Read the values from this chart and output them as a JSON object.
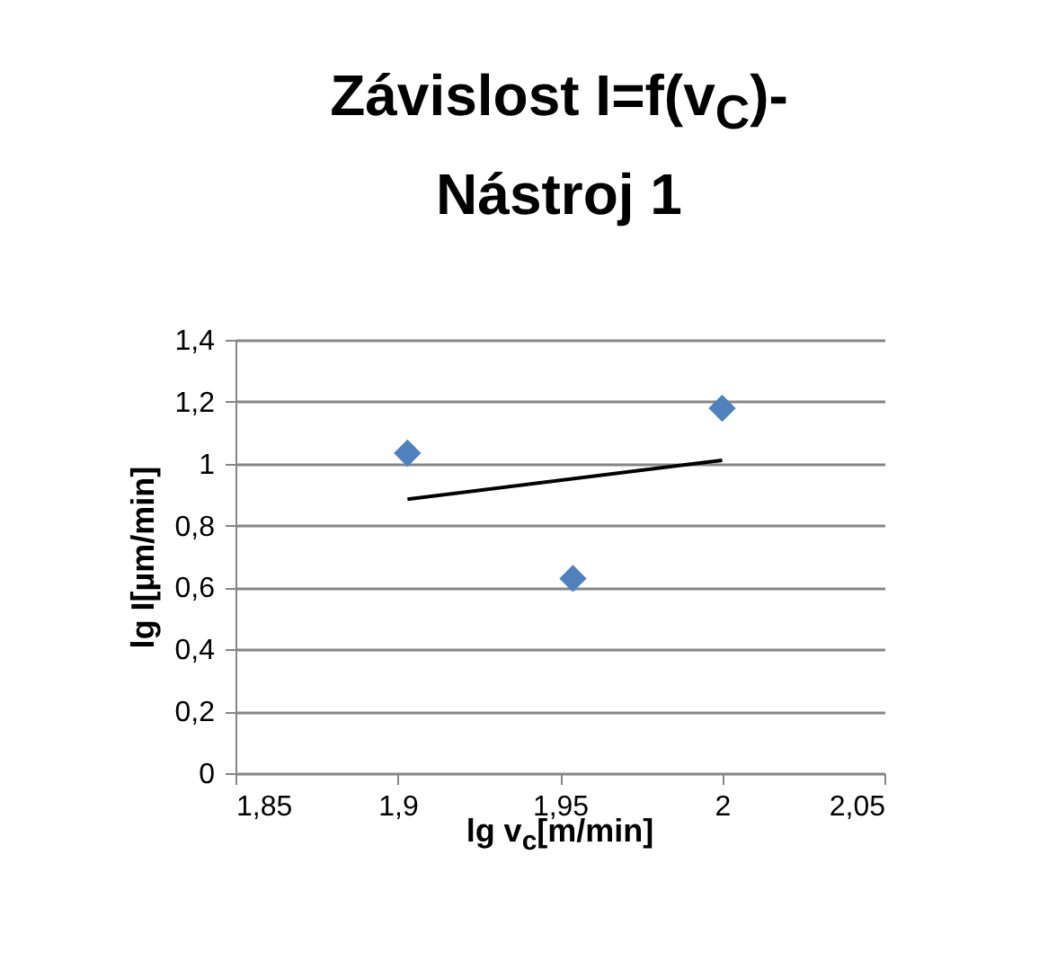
{
  "chart_data": {
    "type": "scatter",
    "title": "Závislost I=f(v$_{C}$)-Nástroj 1",
    "xlabel": "lg v$_{c}$[m/min]",
    "ylabel": "lg I[µm/min]",
    "series": [
      {
        "color": "#4f81bd",
        "marker": "diamond",
        "x": [
          1.903,
          1.954,
          2.0
        ],
        "values": [
          1.034,
          0.629,
          1.179
        ]
      },
      {
        "type": "line",
        "color": "#000000",
        "line_style": "solid",
        "marker": "none",
        "x": [
          1.903,
          2.0
        ],
        "values": [
          0.885,
          1.011
        ]
      }
    ],
    "xlim": [
      1.85,
      2.05
    ],
    "xticks": [
      {
        "value": 1.85,
        "label": "1,85"
      },
      {
        "value": 1.9,
        "label": "1,9"
      },
      {
        "value": 1.95,
        "label": "1,95"
      },
      2,
      {
        "value": 2.05,
        "label": "2,05"
      }
    ],
    "ylim": [
      0,
      1.4
    ],
    "yticks": [
      0,
      {
        "value": 0.2,
        "label": "0,2"
      },
      {
        "value": 0.4,
        "label": "0,4"
      },
      {
        "value": 0.6,
        "label": "0,6"
      },
      {
        "value": 0.8,
        "label": "0,8"
      },
      1,
      {
        "value": 1.2,
        "label": "1,2"
      },
      {
        "value": 1.4,
        "label": "1,4"
      }
    ],
    "grid": "y"
  }
}
